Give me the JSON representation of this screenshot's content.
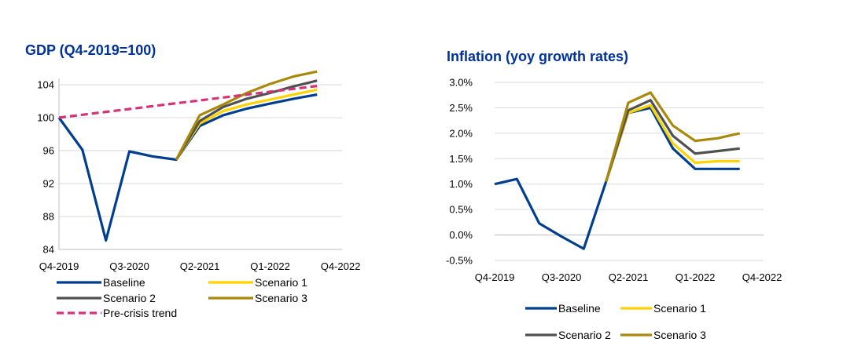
{
  "chart_data": [
    {
      "type": "line",
      "title": "GDP (Q4-2019=100)",
      "title_color": "#003299",
      "xlabel": "",
      "ylabel": "",
      "x": [
        "Q4-2019",
        "Q1-2020",
        "Q2-2020",
        "Q3-2020",
        "Q4-2020",
        "Q1-2021",
        "Q2-2021",
        "Q3-2021",
        "Q4-2021",
        "Q1-2022",
        "Q2-2022",
        "Q3-2022",
        "Q4-2022"
      ],
      "x_tick_labels": [
        "Q4-2019",
        "Q3-2020",
        "Q2-2021",
        "Q1-2022",
        "Q4-2022"
      ],
      "y_tick_labels": [
        "84",
        "88",
        "92",
        "96",
        "100",
        "104"
      ],
      "ylim": [
        84,
        107
      ],
      "grid": "horizontal",
      "legend_position": "bottom",
      "series": [
        {
          "name": "Baseline",
          "color": "#003f8f",
          "dashed": false,
          "values": [
            100,
            96.1,
            85.1,
            95.9,
            95.3,
            94.9,
            99.0,
            100.3,
            101.1,
            101.7,
            102.3,
            102.8,
            null
          ]
        },
        {
          "name": "Scenario 1",
          "color": "#ffd200",
          "dashed": false,
          "values": [
            null,
            null,
            null,
            null,
            null,
            94.9,
            99.3,
            100.8,
            101.6,
            102.2,
            102.8,
            103.4,
            null
          ]
        },
        {
          "name": "Scenario 2",
          "color": "#505050",
          "dashed": false,
          "values": [
            null,
            null,
            null,
            null,
            null,
            94.9,
            99.6,
            101.3,
            102.3,
            103.0,
            103.8,
            104.5,
            null
          ]
        },
        {
          "name": "Scenario 3",
          "color": "#a8890c",
          "dashed": false,
          "values": [
            null,
            null,
            null,
            null,
            null,
            94.9,
            100.3,
            101.6,
            103.0,
            104.1,
            105.0,
            105.6,
            null
          ]
        },
        {
          "name": "Pre-crisis trend",
          "color": "#d6327a",
          "dashed": true,
          "values": [
            100,
            100.35,
            100.7,
            101.05,
            101.4,
            101.75,
            102.1,
            102.45,
            102.8,
            103.15,
            103.5,
            103.85,
            null
          ]
        }
      ]
    },
    {
      "type": "line",
      "title": "Inflation (yoy growth rates)",
      "title_color": "#003299",
      "xlabel": "",
      "ylabel": "",
      "x": [
        "Q4-2019",
        "Q1-2020",
        "Q2-2020",
        "Q3-2020",
        "Q4-2020",
        "Q1-2021",
        "Q2-2021",
        "Q3-2021",
        "Q4-2021",
        "Q1-2022",
        "Q2-2022",
        "Q3-2022",
        "Q4-2022"
      ],
      "x_tick_labels": [
        "Q4-2019",
        "Q3-2020",
        "Q2-2021",
        "Q1-2022",
        "Q4-2022"
      ],
      "y_tick_labels": [
        "-0.5%",
        "0.0%",
        "0.5%",
        "1.0%",
        "1.5%",
        "2.0%",
        "2.5%",
        "3.0%"
      ],
      "ylim": [
        -0.5,
        3.0
      ],
      "grid": "horizontal",
      "legend_position": "bottom",
      "series": [
        {
          "name": "Baseline",
          "color": "#003f8f",
          "dashed": false,
          "values": [
            1.0,
            1.1,
            0.23,
            -0.03,
            -0.27,
            1.05,
            2.4,
            2.5,
            1.7,
            1.3,
            1.3,
            1.3,
            null
          ]
        },
        {
          "name": "Scenario 1",
          "color": "#ffd200",
          "dashed": false,
          "values": [
            null,
            null,
            null,
            null,
            null,
            1.05,
            2.4,
            2.55,
            1.8,
            1.42,
            1.45,
            1.45,
            null
          ]
        },
        {
          "name": "Scenario 2",
          "color": "#505050",
          "dashed": false,
          "values": [
            null,
            null,
            null,
            null,
            null,
            1.05,
            2.45,
            2.65,
            1.95,
            1.6,
            1.65,
            1.7,
            null
          ]
        },
        {
          "name": "Scenario 3",
          "color": "#a8890c",
          "dashed": false,
          "values": [
            null,
            null,
            null,
            null,
            null,
            1.05,
            2.6,
            2.8,
            2.15,
            1.85,
            1.9,
            2.0,
            null
          ]
        }
      ]
    }
  ]
}
